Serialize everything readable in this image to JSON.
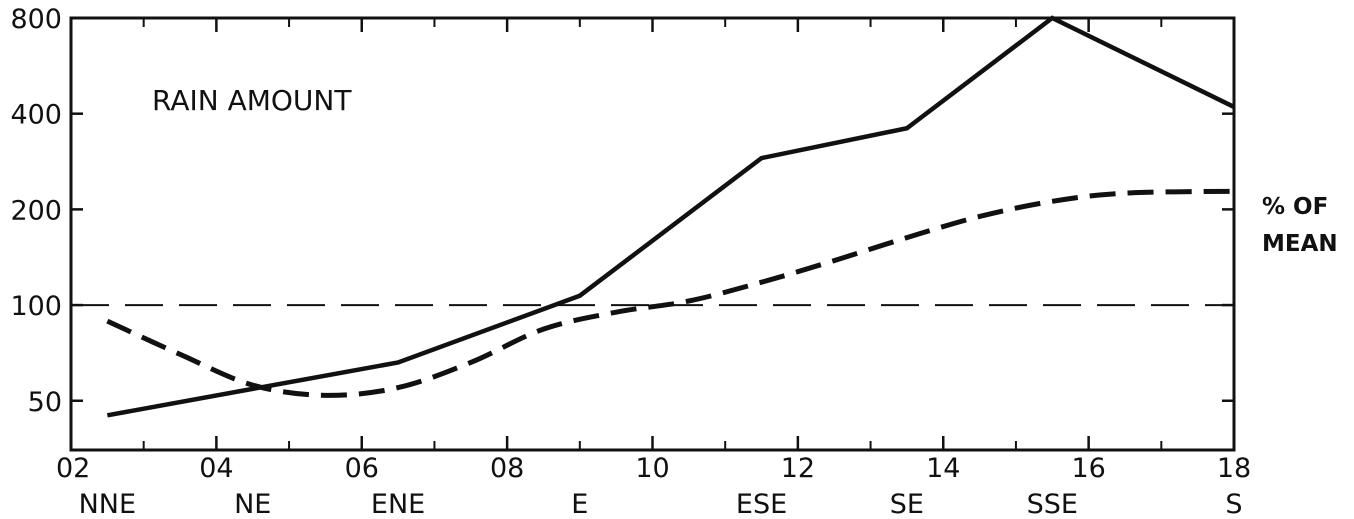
{
  "chart_data": {
    "type": "line",
    "title": "RAIN AMOUNT",
    "y_unit_label": [
      "%  OF",
      "MEAN"
    ],
    "y_scale": "log2",
    "ylim": [
      35,
      800
    ],
    "xlim": [
      2,
      18
    ],
    "y_ticks": [
      {
        "value": 50,
        "label": "50"
      },
      {
        "value": 100,
        "label": "100"
      },
      {
        "value": 200,
        "label": "200"
      },
      {
        "value": 400,
        "label": "400"
      },
      {
        "value": 800,
        "label": "800"
      }
    ],
    "x_ticks": [
      {
        "value": 2,
        "label": "02"
      },
      {
        "value": 4,
        "label": "04"
      },
      {
        "value": 6,
        "label": "06"
      },
      {
        "value": 8,
        "label": "08"
      },
      {
        "value": 10,
        "label": "10"
      },
      {
        "value": 12,
        "label": "12"
      },
      {
        "value": 14,
        "label": "14"
      },
      {
        "value": 16,
        "label": "16"
      },
      {
        "value": 18,
        "label": "18"
      }
    ],
    "x_categories": [
      {
        "value": 2.5,
        "label": "NNE"
      },
      {
        "value": 4.5,
        "label": "NE"
      },
      {
        "value": 6.5,
        "label": "ENE"
      },
      {
        "value": 9.0,
        "label": "E"
      },
      {
        "value": 11.5,
        "label": "ESE"
      },
      {
        "value": 13.5,
        "label": "SE"
      },
      {
        "value": 15.5,
        "label": "SSE"
      },
      {
        "value": 18.0,
        "label": "S"
      }
    ],
    "reference_line": {
      "value": 100,
      "style": "dashed"
    },
    "series": [
      {
        "style": "solid",
        "points": [
          [
            2.5,
            45
          ],
          [
            6.5,
            66
          ],
          [
            9.0,
            107
          ],
          [
            11.5,
            290
          ],
          [
            13.5,
            360
          ],
          [
            15.5,
            800
          ],
          [
            18.0,
            420
          ]
        ]
      },
      {
        "style": "dashed",
        "points": [
          [
            2.5,
            89
          ],
          [
            3.5,
            70
          ],
          [
            4.5,
            56
          ],
          [
            5.5,
            52
          ],
          [
            6.5,
            55
          ],
          [
            7.5,
            66
          ],
          [
            8.5,
            84
          ],
          [
            9.5,
            95
          ],
          [
            10.5,
            103
          ],
          [
            11.5,
            118
          ],
          [
            12.5,
            138
          ],
          [
            13.5,
            163
          ],
          [
            14.5,
            190
          ],
          [
            15.5,
            212
          ],
          [
            16.5,
            225
          ],
          [
            18.0,
            228
          ]
        ]
      }
    ]
  }
}
